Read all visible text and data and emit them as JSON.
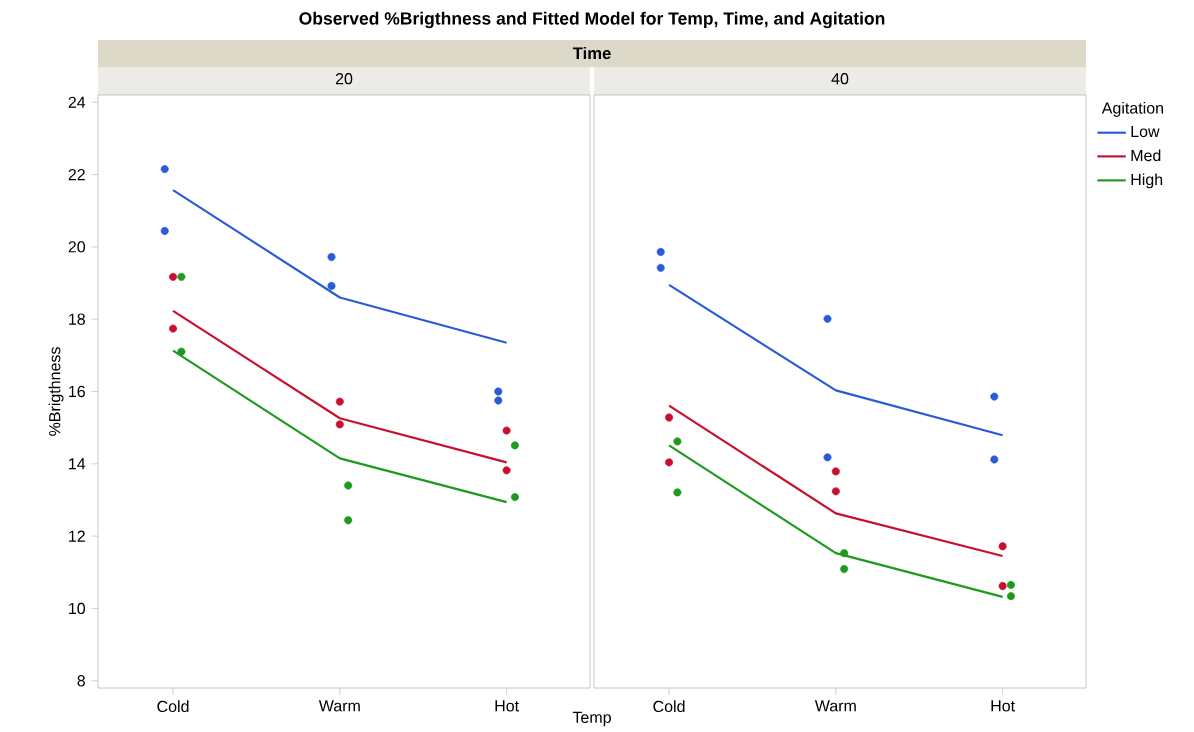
{
  "chart_data": [
    {
      "type": "line",
      "title": "20",
      "ylabel": "%Brigthness",
      "xlabel": "Temp",
      "annotations": [
        "Observed %Brigthness and Fitted Model for Temp, Time, and Agitation",
        "Time"
      ],
      "categories": [
        "Cold",
        "Warm",
        "Hot"
      ],
      "ylim": [
        7.8,
        24.2
      ],
      "yticks": [
        8,
        10,
        12,
        14,
        16,
        18,
        20,
        22,
        24
      ],
      "series": [
        {
          "type": "scatter",
          "color": "#2a5bd7",
          "x": [
            "Cold",
            "Cold",
            "Warm",
            "Warm",
            "Hot",
            "Hot"
          ],
          "values": [
            22.15,
            20.44,
            19.72,
            18.92,
            16.0,
            15.75
          ]
        },
        {
          "type": "scatter",
          "color": "#c8102e",
          "x": [
            "Cold",
            "Cold",
            "Warm",
            "Warm",
            "Hot",
            "Hot"
          ],
          "values": [
            19.17,
            17.74,
            15.72,
            15.09,
            14.92,
            13.82
          ]
        },
        {
          "type": "scatter",
          "color": "#1f9a1f",
          "x": [
            "Cold",
            "Cold",
            "Warm",
            "Warm",
            "Hot",
            "Hot"
          ],
          "values": [
            19.17,
            17.1,
            13.4,
            12.44,
            14.51,
            13.08
          ]
        },
        {
          "color": "#2a5bd7",
          "values": [
            21.57,
            18.6,
            17.35
          ]
        },
        {
          "color": "#c8102e",
          "values": [
            18.23,
            15.26,
            14.04
          ]
        },
        {
          "color": "#1f9a1f",
          "values": [
            17.13,
            14.15,
            12.94
          ]
        }
      ]
    },
    {
      "type": "line",
      "title": "40",
      "legend_title": "Agitation",
      "legend": "right",
      "tick_labels": "x",
      "categories": [
        "Cold",
        "Warm",
        "Hot"
      ],
      "ylim": [
        7.8,
        24.2
      ],
      "series": [
        {
          "type": "scatter",
          "color": "#2a5bd7",
          "x": [
            "Cold",
            "Cold",
            "Warm",
            "Warm",
            "Hot",
            "Hot"
          ],
          "values": [
            19.86,
            19.42,
            18.01,
            14.18,
            15.86,
            14.12
          ]
        },
        {
          "type": "scatter",
          "color": "#c8102e",
          "x": [
            "Cold",
            "Cold",
            "Warm",
            "Warm",
            "Hot",
            "Hot"
          ],
          "values": [
            15.28,
            14.04,
            13.79,
            13.24,
            11.72,
            10.62
          ]
        },
        {
          "type": "scatter",
          "color": "#1f9a1f",
          "x": [
            "Cold",
            "Cold",
            "Warm",
            "Warm",
            "Hot",
            "Hot"
          ],
          "values": [
            14.62,
            13.21,
            11.53,
            11.09,
            10.65,
            10.34
          ]
        },
        {
          "name": "Low",
          "color": "#2a5bd7",
          "values": [
            18.95,
            16.03,
            14.79
          ]
        },
        {
          "name": "Med",
          "color": "#c8102e",
          "values": [
            15.61,
            12.63,
            11.45
          ]
        },
        {
          "name": "High",
          "color": "#1f9a1f",
          "values": [
            14.51,
            11.53,
            10.32
          ]
        }
      ]
    }
  ]
}
